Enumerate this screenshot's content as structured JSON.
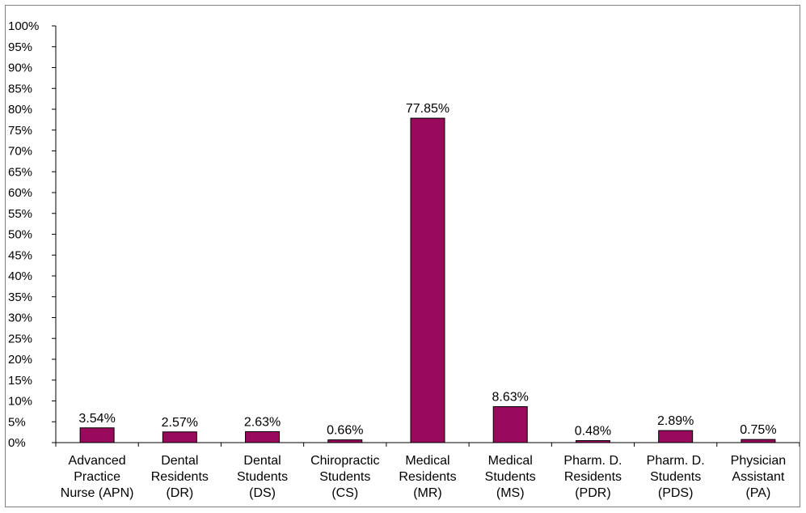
{
  "chart_data": {
    "type": "bar",
    "categories": [
      [
        "Advanced",
        "Practice",
        "Nurse (APN)"
      ],
      [
        "Dental",
        "Residents",
        "(DR)"
      ],
      [
        "Dental",
        "Students",
        "(DS)"
      ],
      [
        "Chiropractic",
        "Students",
        "(CS)"
      ],
      [
        "Medical",
        "Residents",
        "(MR)"
      ],
      [
        "Medical",
        "Students",
        "(MS)"
      ],
      [
        "Pharm. D.",
        "Residents",
        "(PDR)"
      ],
      [
        "Pharm. D.",
        "Students",
        "(PDS)"
      ],
      [
        "Physician",
        "Assistant",
        "(PA)"
      ]
    ],
    "values": [
      3.54,
      2.57,
      2.63,
      0.66,
      77.85,
      8.63,
      0.48,
      2.89,
      0.75
    ],
    "data_labels": [
      "3.54%",
      "2.57%",
      "2.63%",
      "0.66%",
      "77.85%",
      "8.63%",
      "0.48%",
      "2.89%",
      "0.75%"
    ],
    "y_ticks": [
      "0%",
      "5%",
      "10%",
      "15%",
      "20%",
      "25%",
      "30%",
      "35%",
      "40%",
      "45%",
      "50%",
      "55%",
      "60%",
      "65%",
      "70%",
      "75%",
      "80%",
      "85%",
      "90%",
      "95%",
      "100%"
    ],
    "ylim": [
      0,
      100
    ],
    "bar_color": "#990a5c",
    "grid": false,
    "legend": "none"
  }
}
